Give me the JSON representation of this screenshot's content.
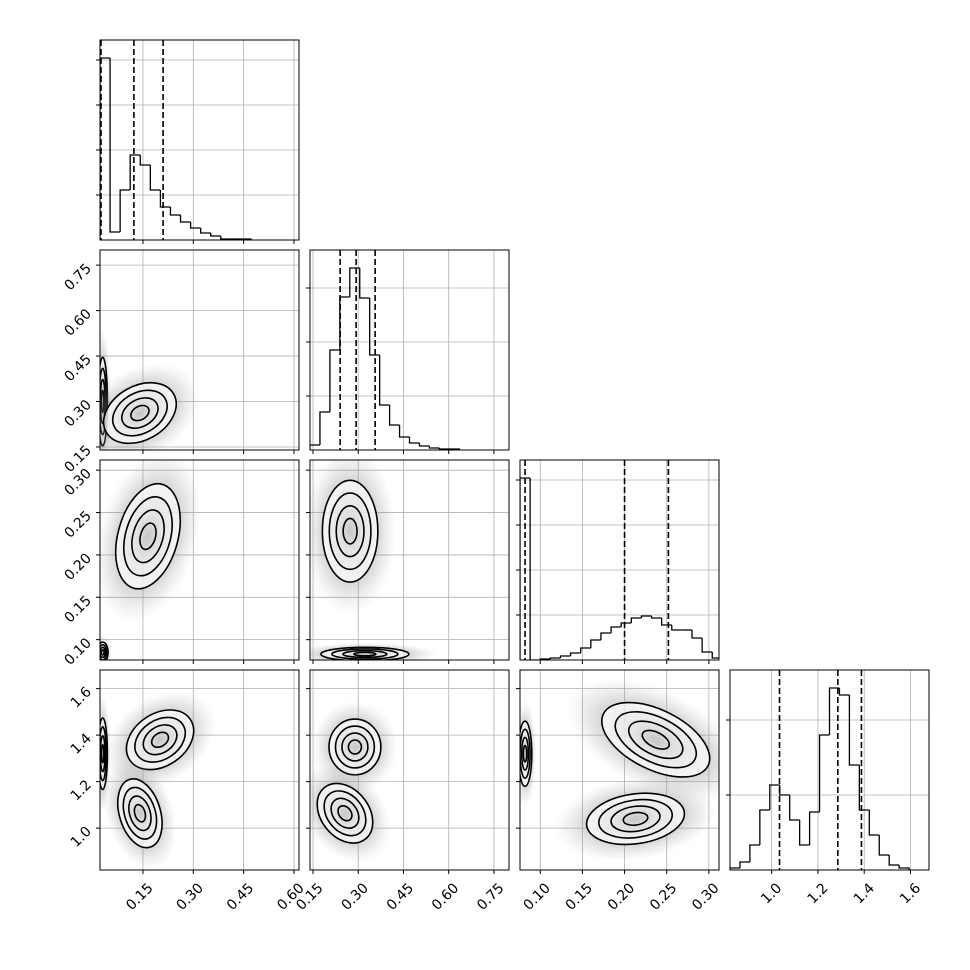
{
  "chart_data": {
    "type": "corner",
    "params": [
      {
        "lim": [
          0.022,
          0.615
        ],
        "ticks": [
          0.15,
          {
            "value": 0.3,
            "label": "0.30"
          },
          0.45,
          {
            "value": 0.6,
            "label": "0.60"
          }
        ],
        "hist": {
          "bins": [
            0.022,
            0.052,
            0.082,
            0.112,
            0.142,
            0.172,
            0.202,
            0.232,
            0.262,
            0.292,
            0.322,
            0.352,
            0.382,
            0.412,
            0.442,
            0.472
          ],
          "counts": [
            182,
            8,
            50,
            85,
            75,
            50,
            33,
            25,
            18,
            12,
            7,
            4,
            1,
            1,
            1
          ],
          "ylim": [
            0,
            200
          ],
          "yticks": [
            45,
            90,
            135,
            180
          ],
          "quantiles": [
            0.025,
            0.123,
            0.21
          ]
        }
      },
      {
        "lim": [
          0.14,
          0.8
        ],
        "ticks": [
          0.15,
          {
            "value": 0.3,
            "label": "0.30"
          },
          0.45,
          {
            "value": 0.6,
            "label": "0.60"
          },
          0.75
        ],
        "hist": {
          "bins": [
            0.14,
            0.173,
            0.206,
            0.239,
            0.272,
            0.305,
            0.338,
            0.371,
            0.404,
            0.437,
            0.47,
            0.503,
            0.536,
            0.569,
            0.602,
            0.635
          ],
          "counts": [
            5,
            38,
            100,
            153,
            182,
            152,
            95,
            45,
            25,
            13,
            7,
            4,
            2,
            1,
            1
          ],
          "ylim": [
            0,
            200
          ],
          "yticks": [
            54,
            108,
            162
          ],
          "quantiles": [
            0.24,
            0.293,
            0.356
          ]
        }
      },
      {
        "lim": [
          0.076,
          0.312
        ],
        "ticks": [
          {
            "value": 0.1,
            "label": "0.10"
          },
          0.15,
          {
            "value": 0.2,
            "label": "0.20"
          },
          0.25,
          {
            "value": 0.3,
            "label": "0.30"
          }
        ],
        "hist": {
          "bins": [
            0.076,
            0.088,
            0.1,
            0.112,
            0.124,
            0.136,
            0.148,
            0.16,
            0.172,
            0.184,
            0.196,
            0.208,
            0.22,
            0.232,
            0.244,
            0.256,
            0.268,
            0.28,
            0.292,
            0.304,
            0.316
          ],
          "counts": [
            182,
            0,
            1,
            2,
            4,
            7,
            12,
            20,
            27,
            33,
            37,
            42,
            44,
            42,
            35,
            30,
            30,
            22,
            8,
            2
          ],
          "ylim": [
            0,
            200
          ],
          "yticks": [
            45,
            90,
            135,
            180
          ],
          "quantiles": [
            0.082,
            0.2,
            0.252
          ]
        }
      },
      {
        "lim": [
          0.82,
          1.68
        ],
        "ticks": [
          {
            "value": 1,
            "label": "1.0"
          },
          1.2,
          1.4,
          1.6
        ],
        "hist": {
          "bins": [
            0.82,
            0.863,
            0.906,
            0.949,
            0.992,
            1.035,
            1.078,
            1.121,
            1.164,
            1.207,
            1.25,
            1.293,
            1.336,
            1.379,
            1.422,
            1.465,
            1.508,
            1.551,
            1.594
          ],
          "counts": [
            2,
            8,
            25,
            60,
            85,
            75,
            50,
            25,
            58,
            135,
            182,
            175,
            105,
            60,
            35,
            15,
            5,
            2
          ],
          "ylim": [
            0,
            200
          ],
          "yticks": [
            75,
            150
          ],
          "quantiles": [
            1.034,
            1.286,
            1.388
          ]
        }
      }
    ],
    "panels": [
      {
        "clusters": [
          {
            "center": [
              0.03,
              0.3
            ],
            "sd": [
              0.007,
              0.073
            ],
            "rho": 0
          },
          {
            "center": [
              0.141,
              0.262
            ],
            "sd": [
              0.054,
              0.05
            ],
            "rho": 0.3
          }
        ]
      },
      {
        "clusters": [
          {
            "center": [
              0.03,
              0.085
            ],
            "sd": [
              0.008,
              0.006
            ],
            "rho": 0
          },
          {
            "center": [
              0.165,
              0.222
            ],
            "sd": [
              0.048,
              0.031
            ],
            "rho": 0.3
          }
        ]
      },
      {
        "clusters": [
          {
            "center": [
              0.322,
              0.083
            ],
            "sd": [
              0.073,
              0.004
            ],
            "rho": 0
          },
          {
            "center": [
              0.273,
              0.228
            ],
            "sd": [
              0.046,
              0.03
            ],
            "rho": 0
          }
        ]
      },
      {
        "clusters": [
          {
            "center": [
              0.03,
              1.32
            ],
            "sd": [
              0.007,
              0.077
            ],
            "rho": 0
          },
          {
            "center": [
              0.201,
              1.38
            ],
            "sd": [
              0.05,
              0.064
            ],
            "rho": 0.3
          },
          {
            "center": [
              0.141,
              1.064
            ],
            "sd": [
              0.033,
              0.074
            ],
            "rho": -0.3
          }
        ]
      },
      {
        "clusters": [
          {
            "center": [
              0.289,
              1.349
            ],
            "sd": [
              0.043,
              0.06
            ],
            "rho": 0
          },
          {
            "center": [
              0.256,
              1.064
            ],
            "sd": [
              0.046,
              0.064
            ],
            "rho": -0.3
          }
        ]
      },
      {
        "clusters": [
          {
            "center": [
              0.082,
              1.32
            ],
            "sd": [
              0.004,
              0.07
            ],
            "rho": 0
          },
          {
            "center": [
              0.237,
              1.38
            ],
            "sd": [
              0.032,
              0.08
            ],
            "rho": -0.5
          },
          {
            "center": [
              0.213,
              1.04
            ],
            "sd": [
              0.029,
              0.055
            ],
            "rho": 0.2
          }
        ]
      }
    ]
  }
}
